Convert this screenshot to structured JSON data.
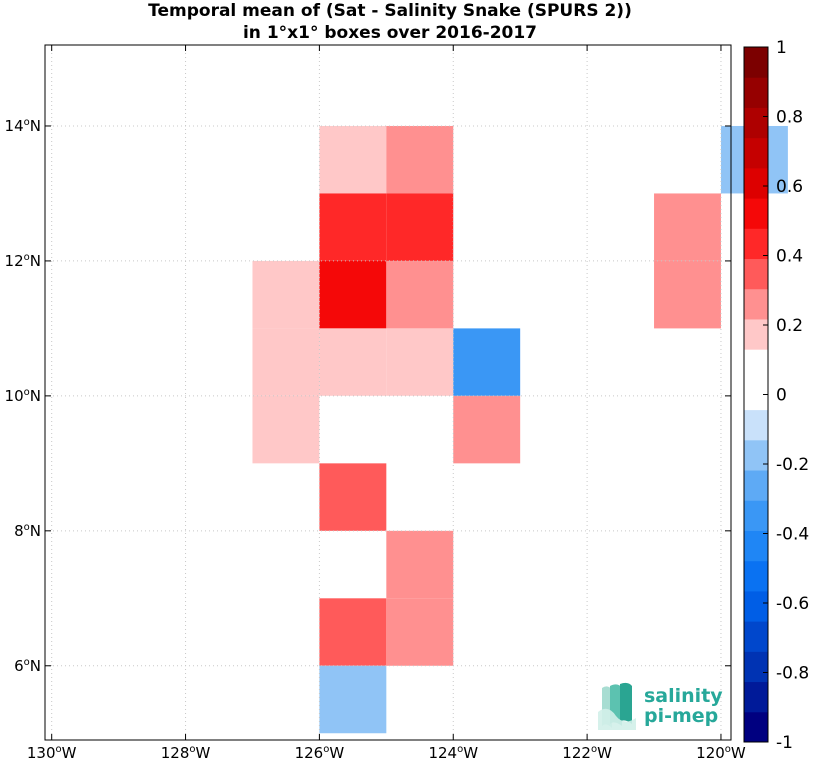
{
  "chart_data": {
    "type": "heatmap",
    "title": [
      "Temporal mean of (Sat - Salinity Snake (SPURS 2))",
      "in 1°x1° boxes over 2016-2017"
    ],
    "x_ticks": [
      {
        "value": -130,
        "label": "130",
        "suffix": "W"
      },
      {
        "value": -128,
        "label": "128",
        "suffix": "W"
      },
      {
        "value": -126,
        "label": "126",
        "suffix": "W"
      },
      {
        "value": -124,
        "label": "124",
        "suffix": "W"
      },
      {
        "value": -122,
        "label": "122",
        "suffix": "W"
      },
      {
        "value": -120,
        "label": "120",
        "suffix": "W"
      }
    ],
    "y_ticks": [
      {
        "value": 6,
        "label": "6",
        "suffix": "N"
      },
      {
        "value": 8,
        "label": "8",
        "suffix": "N"
      },
      {
        "value": 10,
        "label": "10",
        "suffix": "N"
      },
      {
        "value": 12,
        "label": "12",
        "suffix": "N"
      },
      {
        "value": 14,
        "label": "14",
        "suffix": "N"
      }
    ],
    "xlim": [
      -130.1,
      -119.85
    ],
    "ylim": [
      4.9,
      15.2
    ],
    "grid": true,
    "cells": [
      {
        "lon": -126,
        "lat": 13,
        "value": 0.15
      },
      {
        "lon": -125,
        "lat": 13,
        "value": 0.3
      },
      {
        "lon": -120,
        "lat": 13,
        "value": -0.15
      },
      {
        "lon": -126,
        "lat": 12,
        "value": 0.45
      },
      {
        "lon": -125,
        "lat": 12,
        "value": 0.45
      },
      {
        "lon": -121,
        "lat": 12,
        "value": 0.3
      },
      {
        "lon": -127,
        "lat": 11,
        "value": 0.15
      },
      {
        "lon": -126,
        "lat": 11,
        "value": 0.55
      },
      {
        "lon": -125,
        "lat": 11,
        "value": 0.3
      },
      {
        "lon": -121,
        "lat": 11,
        "value": 0.3
      },
      {
        "lon": -127,
        "lat": 10,
        "value": 0.15
      },
      {
        "lon": -126,
        "lat": 10,
        "value": 0.15
      },
      {
        "lon": -125,
        "lat": 10,
        "value": 0.15
      },
      {
        "lon": -124,
        "lat": 10,
        "value": -0.35
      },
      {
        "lon": -127,
        "lat": 9,
        "value": 0.15
      },
      {
        "lon": -126,
        "lat": 9,
        "value": 0.05
      },
      {
        "lon": -125,
        "lat": 9,
        "value": 0.05
      },
      {
        "lon": -124,
        "lat": 9,
        "value": 0.3
      },
      {
        "lon": -126,
        "lat": 8,
        "value": 0.35
      },
      {
        "lon": -125,
        "lat": 7,
        "value": 0.3
      },
      {
        "lon": -126,
        "lat": 6,
        "value": 0.35
      },
      {
        "lon": -125,
        "lat": 6,
        "value": 0.3
      },
      {
        "lon": -126,
        "lat": 5,
        "value": -0.15
      }
    ],
    "colorbar": {
      "range": [
        -1,
        1
      ],
      "ticks": [
        "-1",
        "-0.8",
        "-0.6",
        "-0.4",
        "-0.2",
        "0",
        "0.2",
        "0.4",
        "0.6",
        "0.8",
        "1"
      ],
      "colors": [
        "#000080",
        "#001a99",
        "#0033b3",
        "#0047cc",
        "#005ee6",
        "#0a72f2",
        "#1f86f5",
        "#3a97f5",
        "#5eaaf5",
        "#90c4f6",
        "#c9e1fa",
        "#ffffff",
        "#ffffff",
        "#ffc8c8",
        "#ff9090",
        "#ff5a5a",
        "#ff2828",
        "#f50808",
        "#dd0000",
        "#c50000",
        "#ae0000",
        "#960000",
        "#7c0000"
      ]
    }
  },
  "logo": {
    "line1": "salinity",
    "line2": "pi-mep"
  }
}
